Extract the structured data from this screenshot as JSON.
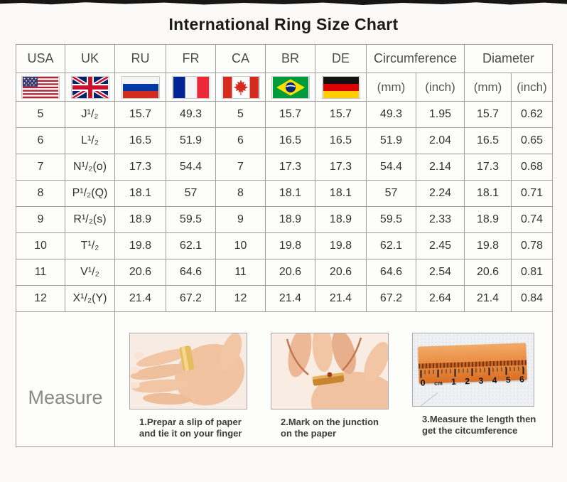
{
  "page": {
    "title": "International Ring Size Chart"
  },
  "colors": {
    "table_border": "#9d9d9d",
    "title_text": "#1b1b1b",
    "header_text": "#4c4c4c",
    "cell_text": "#333333",
    "measure_label_text": "#8a8a8a",
    "top_bar": "#161616",
    "ruler_orange": "#e8883c"
  },
  "table": {
    "country_columns": [
      "USA",
      "UK",
      "RU",
      "FR",
      "CA",
      "BR",
      "DE"
    ],
    "flag_icons": [
      "usa-flag",
      "uk-flag",
      "russia-flag",
      "france-flag",
      "canada-flag",
      "brazil-flag",
      "germany-flag"
    ],
    "group_headers": [
      {
        "label": "Circumference",
        "sub": [
          "(mm)",
          "(inch)"
        ]
      },
      {
        "label": "Diameter",
        "sub": [
          "(mm)",
          "(inch)"
        ]
      }
    ]
  },
  "chart_data": {
    "type": "table",
    "title": "International Ring Size Chart",
    "columns": [
      "USA",
      "UK",
      "RU",
      "FR",
      "CA",
      "BR",
      "DE",
      "Circumference (mm)",
      "Circumference (inch)",
      "Diameter (mm)",
      "Diameter (inch)"
    ],
    "rows": [
      [
        "5",
        "J¹/₂",
        "15.7",
        "49.3",
        "5",
        "15.7",
        "15.7",
        "49.3",
        "1.95",
        "15.7",
        "0.62"
      ],
      [
        "6",
        "L¹/₂",
        "16.5",
        "51.9",
        "6",
        "16.5",
        "16.5",
        "51.9",
        "2.04",
        "16.5",
        "0.65"
      ],
      [
        "7",
        "N¹/₂(o)",
        "17.3",
        "54.4",
        "7",
        "17.3",
        "17.3",
        "54.4",
        "2.14",
        "17.3",
        "0.68"
      ],
      [
        "8",
        "P¹/₂(Q)",
        "18.1",
        "57",
        "8",
        "18.1",
        "18.1",
        "57",
        "2.24",
        "18.1",
        "0.71"
      ],
      [
        "9",
        "R¹/₂(s)",
        "18.9",
        "59.5",
        "9",
        "18.9",
        "18.9",
        "59.5",
        "2.33",
        "18.9",
        "0.74"
      ],
      [
        "10",
        "T¹/₂",
        "19.8",
        "62.1",
        "10",
        "19.8",
        "19.8",
        "62.1",
        "2.45",
        "19.8",
        "0.78"
      ],
      [
        "11",
        "V¹/₂",
        "20.6",
        "64.6",
        "11",
        "20.6",
        "20.6",
        "64.6",
        "2.54",
        "20.6",
        "0.81"
      ],
      [
        "12",
        "X¹/₂(Y)",
        "21.4",
        "67.2",
        "12",
        "21.4",
        "21.4",
        "67.2",
        "2.64",
        "21.4",
        "0.84"
      ]
    ]
  },
  "measure": {
    "label": "Measure",
    "steps": [
      {
        "caption_line1": "1.Prepar a slip of paper",
        "caption_line2": "and tie it on your finger"
      },
      {
        "caption_line1": "2.Mark on the junction",
        "caption_line2": "on the paper"
      },
      {
        "caption_line1": "3.Measure the length then",
        "caption_line2": "get the citcumference"
      }
    ],
    "ruler_marks": [
      "0",
      "cm",
      "1",
      "2",
      "3",
      "4",
      "5",
      "6"
    ]
  }
}
